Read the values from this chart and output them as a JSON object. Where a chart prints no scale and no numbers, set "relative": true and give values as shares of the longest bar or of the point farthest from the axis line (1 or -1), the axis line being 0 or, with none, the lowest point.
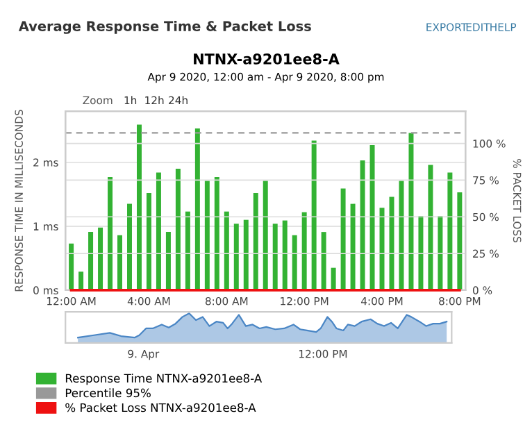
{
  "chart_data": [
    {
      "type": "bar",
      "title": "NTNX-a9201ee8-A",
      "subtitle": "Apr 9 2020, 12:00 am - Apr 9 2020, 8:00 pm",
      "ylabel": "RESPONSE TIME IN MILLISECONDS",
      "y2label": "% PACKET LOSS",
      "annotations": [
        "Average Response Time & Packet Loss",
        "EXPORT",
        "EDIT",
        "HELP",
        "Zoom",
        "1h",
        "12h",
        "24h"
      ],
      "x": [
        "2020-04-09T00:00",
        "2020-04-09T00:30",
        "2020-04-09T01:00",
        "2020-04-09T01:30",
        "2020-04-09T02:00",
        "2020-04-09T02:30",
        "2020-04-09T03:00",
        "2020-04-09T03:30",
        "2020-04-09T04:00",
        "2020-04-09T04:30",
        "2020-04-09T05:00",
        "2020-04-09T05:30",
        "2020-04-09T06:00",
        "2020-04-09T06:30",
        "2020-04-09T07:00",
        "2020-04-09T07:30",
        "2020-04-09T08:00",
        "2020-04-09T08:30",
        "2020-04-09T09:00",
        "2020-04-09T09:30",
        "2020-04-09T10:00",
        "2020-04-09T10:30",
        "2020-04-09T11:00",
        "2020-04-09T11:30",
        "2020-04-09T12:00",
        "2020-04-09T12:30",
        "2020-04-09T13:00",
        "2020-04-09T13:30",
        "2020-04-09T14:00",
        "2020-04-09T14:30",
        "2020-04-09T15:00",
        "2020-04-09T15:30",
        "2020-04-09T16:00",
        "2020-04-09T16:30",
        "2020-04-09T17:00",
        "2020-04-09T17:30",
        "2020-04-09T18:00",
        "2020-04-09T18:30",
        "2020-04-09T19:00",
        "2020-04-09T19:30",
        "2020-04-09T20:00"
      ],
      "series": [
        {
          "name": "Response Time NTNX-a9201ee8-A",
          "color": "#33b233",
          "values": [
            0.73,
            0.29,
            0.91,
            0.98,
            1.77,
            0.86,
            1.35,
            2.59,
            1.52,
            1.84,
            0.91,
            1.9,
            1.23,
            2.53,
            1.71,
            1.77,
            1.23,
            1.04,
            1.1,
            1.52,
            1.71,
            1.04,
            1.09,
            0.86,
            1.22,
            2.34,
            0.91,
            0.35,
            1.59,
            1.35,
            2.03,
            2.27,
            1.29,
            1.46,
            1.71,
            2.46,
            1.16,
            1.96,
            1.16,
            1.84,
            1.53
          ]
        },
        {
          "name": "% Packet Loss NTNX-a9201ee8-A",
          "type": "line",
          "axis": "y2",
          "color": "#ee1111",
          "values": [
            0,
            0,
            0,
            0,
            0,
            0,
            0,
            0,
            0,
            0,
            0,
            0,
            0,
            0,
            0,
            0,
            0,
            0,
            0,
            0,
            0,
            0,
            0,
            0,
            0,
            0,
            0,
            0,
            0,
            0,
            0,
            0,
            0,
            0,
            0,
            0,
            0,
            0,
            0,
            0,
            0
          ]
        }
      ],
      "ref_lines": [
        {
          "axis": "y",
          "value": 2.46,
          "label": "Percentile 95%",
          "color": "#999999",
          "line_style": "dashed"
        }
      ],
      "xlim": [
        "2020-04-08T23:42",
        "2020-04-09T20:18"
      ],
      "xticks": [
        {
          "value": "2020-04-09T00:00",
          "label": "12:00 AM"
        },
        {
          "value": "2020-04-09T04:00",
          "label": "4:00 AM"
        },
        {
          "value": "2020-04-09T08:00",
          "label": "8:00 AM"
        },
        {
          "value": "2020-04-09T12:00",
          "label": "12:00 PM"
        },
        {
          "value": "2020-04-09T16:00",
          "label": "4:00 PM"
        },
        {
          "value": "2020-04-09T20:00",
          "label": "8:00 PM"
        }
      ],
      "ylim": [
        0,
        2.8
      ],
      "yticks": [
        {
          "value": 0,
          "label": "0 ms"
        },
        {
          "value": 1,
          "label": "1 ms"
        },
        {
          "value": 2,
          "label": "2 ms"
        }
      ],
      "y2lim": [
        0,
        122
      ],
      "y2ticks": [
        {
          "value": 0,
          "label": "0 %"
        },
        {
          "value": 25,
          "label": "25 %"
        },
        {
          "value": 50,
          "label": "50 %"
        },
        {
          "value": 75,
          "label": "75 %"
        },
        {
          "value": 100,
          "label": "100 %"
        }
      ],
      "grid": "y",
      "legend": "bottom"
    },
    {
      "type": "area",
      "relative": true,
      "tick_labels": "x",
      "x": [
        "2020-04-08T19:38",
        "2020-04-08T20:42",
        "2020-04-08T21:46",
        "2020-04-08T22:31",
        "2020-04-08T23:25",
        "2020-04-08T23:44",
        "2020-04-09T00:11",
        "2020-04-09T00:38",
        "2020-04-09T01:14",
        "2020-04-09T01:42",
        "2020-04-09T02:09",
        "2020-04-09T02:37",
        "2020-04-09T03:04",
        "2020-04-09T03:31",
        "2020-04-09T03:58",
        "2020-04-09T04:25",
        "2020-04-09T04:53",
        "2020-04-09T05:20",
        "2020-04-09T05:38",
        "2020-04-09T05:56",
        "2020-04-09T06:23",
        "2020-04-09T06:51",
        "2020-04-09T07:18",
        "2020-04-09T07:46",
        "2020-04-09T08:13",
        "2020-04-09T08:49",
        "2020-04-09T09:25",
        "2020-04-09T10:02",
        "2020-04-09T10:29",
        "2020-04-09T10:56",
        "2020-04-09T11:33",
        "2020-04-09T11:51",
        "2020-04-09T12:18",
        "2020-04-09T12:36",
        "2020-04-09T12:54",
        "2020-04-09T13:22",
        "2020-04-09T13:40",
        "2020-04-09T14:07",
        "2020-04-09T14:35",
        "2020-04-09T15:11",
        "2020-04-09T15:38",
        "2020-04-09T16:05",
        "2020-04-09T16:33",
        "2020-04-09T17:00",
        "2020-04-09T17:18",
        "2020-04-09T17:36",
        "2020-04-09T17:54",
        "2020-04-09T18:27",
        "2020-04-09T18:54",
        "2020-04-09T19:22",
        "2020-04-09T19:49",
        "2020-04-09T20:16"
      ],
      "series": [
        {
          "color": "#4a86c5",
          "values": [
            0.18,
            0.26,
            0.34,
            0.23,
            0.18,
            0.26,
            0.49,
            0.49,
            0.62,
            0.52,
            0.65,
            0.88,
            1,
            0.77,
            0.88,
            0.57,
            0.72,
            0.68,
            0.49,
            0.65,
            0.95,
            0.57,
            0.62,
            0.49,
            0.54,
            0.46,
            0.49,
            0.62,
            0.46,
            0.42,
            0.37,
            0.49,
            0.88,
            0.72,
            0.49,
            0.42,
            0.62,
            0.57,
            0.72,
            0.8,
            0.65,
            0.57,
            0.68,
            0.49,
            0.72,
            0.95,
            0.88,
            0.72,
            0.57,
            0.65,
            0.65,
            0.72
          ]
        }
      ],
      "xlim": [
        "2020-04-08T18:48",
        "2020-04-09T20:36"
      ],
      "xticks": [
        {
          "value": "2020-04-09T00:00",
          "label": "9. Apr"
        },
        {
          "value": "2020-04-09T12:00",
          "label": "12:00 PM"
        }
      ]
    }
  ]
}
